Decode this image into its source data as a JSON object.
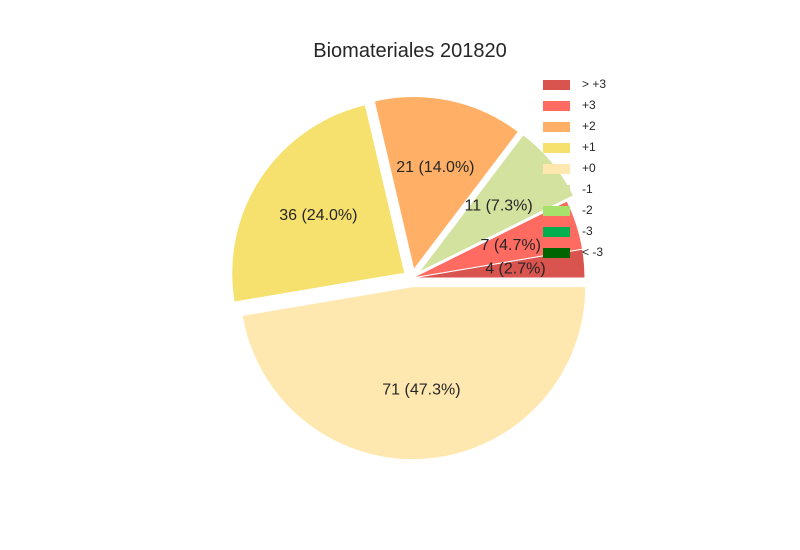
{
  "chart_data": {
    "type": "pie",
    "title": "Biomateriales 201820",
    "slices": [
      {
        "label": "> +3",
        "value": 4,
        "display": "4 (2.7%)",
        "color": "#d9534f",
        "explode": false
      },
      {
        "label": "+3",
        "value": 7,
        "display": "7 (4.7%)",
        "color": "#ff6b61",
        "explode": false
      },
      {
        "label": "-1",
        "value": 11,
        "display": "11 (7.3%)",
        "color": "#d4e2a0",
        "explode": true
      },
      {
        "label": "+2",
        "value": 21,
        "display": "21 (14.0%)",
        "color": "#ffb066",
        "explode": true
      },
      {
        "label": "+1",
        "value": 36,
        "display": "36 (24.0%)",
        "color": "#f6e06e",
        "explode": true
      },
      {
        "label": "+0",
        "value": 71,
        "display": "71 (47.3%)",
        "color": "#ffe8b0",
        "explode": true
      }
    ],
    "legend": [
      {
        "label": "> +3",
        "color": "#d9534f"
      },
      {
        "label": "+3",
        "color": "#ff6b61"
      },
      {
        "label": "+2",
        "color": "#ffb066"
      },
      {
        "label": "+1",
        "color": "#f6e06e"
      },
      {
        "label": "+0",
        "color": "#ffe8b0"
      },
      {
        "label": "-1",
        "color": "#d4e2a0"
      },
      {
        "label": "-2",
        "color": "#a8e06c"
      },
      {
        "label": "-3",
        "color": "#00b050"
      },
      {
        "label": "< -3",
        "color": "#006400"
      }
    ],
    "legend_position": "top-right",
    "start_angle": "0 degrees, counter-clockwise"
  }
}
